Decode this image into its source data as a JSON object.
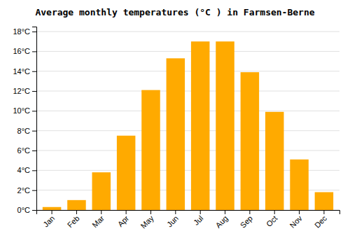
{
  "chart_data": {
    "type": "bar",
    "title": "Average monthly temperatures (°C ) in Farmsen-Berne",
    "categories": [
      "Jan",
      "Feb",
      "Mar",
      "Apr",
      "May",
      "Jun",
      "Jul",
      "Aug",
      "Sep",
      "Oct",
      "Nov",
      "Dec"
    ],
    "values": [
      0.3,
      1.0,
      3.8,
      7.5,
      12.1,
      15.3,
      17.0,
      17.0,
      13.9,
      9.9,
      5.1,
      1.8
    ],
    "color": "#FFAA00",
    "ylim": [
      0,
      18.5
    ],
    "yticks": [
      {
        "value": 0,
        "label": "0°C"
      },
      {
        "value": 2,
        "label": "2°C"
      },
      {
        "value": 4,
        "label": "4°C"
      },
      {
        "value": 6,
        "label": "6°C"
      },
      {
        "value": 8,
        "label": "8°C"
      },
      {
        "value": 10,
        "label": "10°C"
      },
      {
        "value": 12,
        "label": "12°C"
      },
      {
        "value": 14,
        "label": "14°C"
      },
      {
        "value": 16,
        "label": "16°C"
      },
      {
        "value": 18,
        "label": "18°C"
      }
    ],
    "grid": true
  }
}
